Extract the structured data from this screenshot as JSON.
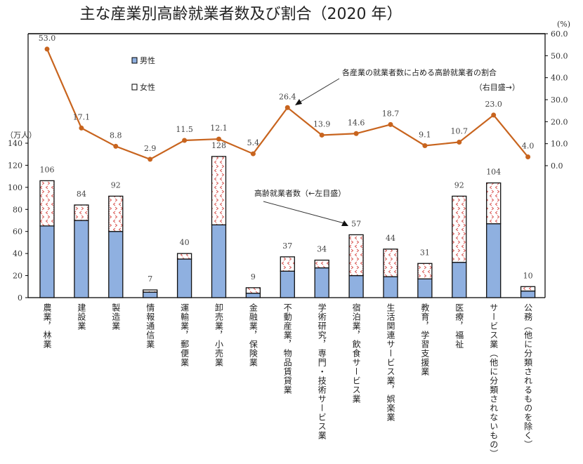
{
  "chart_data": {
    "type": "bar+line",
    "title": "主な産業別高齢就業者数及び割合（2020 年）",
    "left_axis": {
      "unit_label": "（万人）",
      "ylim": [
        0,
        140
      ],
      "ticks": [
        0,
        20,
        40,
        60,
        80,
        100,
        120,
        140
      ]
    },
    "right_axis": {
      "unit_label": "(%)",
      "ylim": [
        0,
        60
      ],
      "ticks": [
        "0.0",
        "10.0",
        "20.0",
        "30.0",
        "40.0",
        "50.0",
        "60.0"
      ]
    },
    "categories": [
      "農業，林業",
      "建設業",
      "製造業",
      "情報通信業",
      "運輸業，郵便業",
      "卸売業，小売業",
      "金融業，保険業",
      "不動産業，物品賃貸業",
      "学術研究，専門・技術サービス業",
      "宿泊業，飲食サービス業",
      "生活関連サービス業，娯楽業",
      "教育，学習支援業",
      "医療，福祉",
      "サービス業（他に分類されないもの）",
      "公務（他に分類されるものを除く）"
    ],
    "series": [
      {
        "name": "男性",
        "type": "bar",
        "stack": "total",
        "color": "#8fb0e0",
        "values": [
          65,
          70,
          60,
          5,
          35,
          66,
          4,
          24,
          27,
          20,
          19,
          17,
          32,
          67,
          6
        ]
      },
      {
        "name": "女性",
        "type": "bar",
        "stack": "total",
        "color": "#ffffff",
        "pattern_color": "#d9534f",
        "values": [
          41,
          14,
          32,
          2,
          5,
          62,
          5,
          13,
          7,
          37,
          25,
          14,
          60,
          37,
          4
        ]
      },
      {
        "name": "各産業の就業者数に占める高齢就業者の割合",
        "type": "line",
        "axis": "right",
        "color": "#c8641e",
        "values": [
          53.0,
          17.1,
          8.8,
          2.9,
          11.5,
          12.1,
          5.4,
          26.4,
          13.9,
          14.6,
          18.7,
          9.1,
          10.7,
          23.0,
          4.0
        ]
      }
    ],
    "totals": [
      106,
      84,
      92,
      7,
      40,
      128,
      9,
      37,
      34,
      57,
      44,
      31,
      92,
      104,
      10
    ],
    "pct_labels": [
      "53.0",
      "17.1",
      "8.8",
      "2.9",
      "11.5",
      "12.1",
      "5.4",
      "26.4",
      "13.9",
      "14.6",
      "18.7",
      "9.1",
      "10.7",
      "23.0",
      "4.0"
    ],
    "legend": {
      "male": "男性",
      "female": "女性",
      "placement": "top-left"
    },
    "annotations": {
      "ratio_line_1": "各産業の就業者数に占める高齢就業者の割合",
      "ratio_line_2": "（右目盛→）",
      "count": "高齢就業者数（←左目盛）"
    }
  }
}
